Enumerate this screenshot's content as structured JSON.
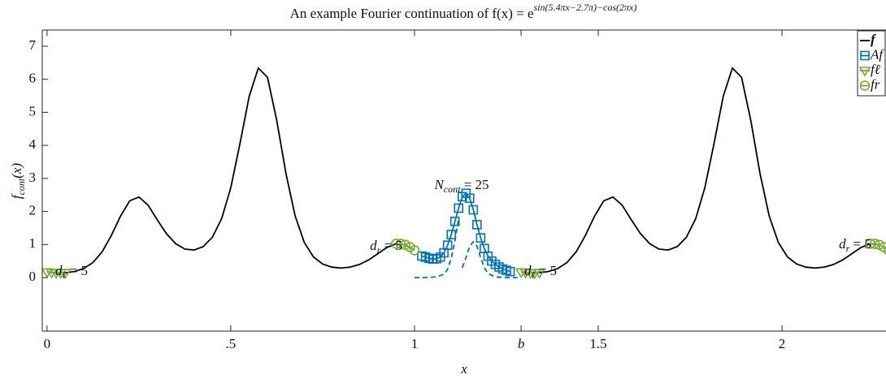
{
  "chart_data": {
    "type": "line",
    "title": {
      "base": "An example Fourier continuation of f(x) = e",
      "sup": "sin(5.4πx−2.7π)−cos(2πx)"
    },
    "xlabel": "x",
    "ylabel": {
      "base": "f",
      "sub": "cont",
      "rest": "(x)"
    },
    "xlim": [
      -0.013,
      2.283
    ],
    "ylim": [
      -1.62,
      7.49
    ],
    "xticks": [
      0,
      {
        "value": 0.5,
        "label": ".5"
      },
      1,
      {
        "value": 1.29,
        "label": "b"
      },
      1.5,
      2
    ],
    "yticks": [
      0,
      1,
      2,
      3,
      4,
      5,
      6,
      7
    ],
    "grid": false,
    "legend": "upper right",
    "series": [
      {
        "name": "f",
        "color": "#000000",
        "marker": "none",
        "dash": false,
        "x": [
          0,
          0.025,
          0.05,
          0.075,
          0.1,
          0.125,
          0.15,
          0.175,
          0.2,
          0.225,
          0.25,
          0.275,
          0.3,
          0.325,
          0.35,
          0.375,
          0.4,
          0.425,
          0.45,
          0.475,
          0.5,
          0.525,
          0.55,
          0.575,
          0.6,
          0.625,
          0.65,
          0.675,
          0.7,
          0.725,
          0.75,
          0.775,
          0.8,
          0.825,
          0.85,
          0.875,
          0.9,
          0.925,
          0.95,
          0.975,
          1,
          1.1,
          1.29,
          1.315,
          1.34,
          1.365,
          1.39,
          1.415,
          1.44,
          1.465,
          1.49,
          1.515,
          1.54,
          1.565,
          1.59,
          1.615,
          1.64,
          1.665,
          1.69,
          1.715,
          1.74,
          1.765,
          1.79,
          1.815,
          1.84,
          1.865,
          1.89,
          1.915,
          1.94,
          1.965,
          1.99,
          2.015,
          2.04,
          2.065,
          2.09,
          2.115,
          2.14,
          2.165,
          2.19,
          2.215,
          2.24,
          2.265
        ],
        "values": [
          0.164,
          0.14,
          0.146,
          0.185,
          0.275,
          0.456,
          0.78,
          1.276,
          1.861,
          2.323,
          2.438,
          2.19,
          1.747,
          1.326,
          1.026,
          0.864,
          0.833,
          0.937,
          1.223,
          1.779,
          2.718,
          4.055,
          5.479,
          6.341,
          6.056,
          4.759,
          3.158,
          1.87,
          1.062,
          0.624,
          0.41,
          0.315,
          0.29,
          0.316,
          0.396,
          0.533,
          0.721,
          0.912,
          1.025,
          0.991,
          0.826,
          null,
          0.164,
          0.14,
          0.146,
          0.185,
          0.275,
          0.456,
          0.78,
          1.276,
          1.861,
          2.323,
          2.438,
          2.19,
          1.747,
          1.326,
          1.026,
          0.864,
          0.833,
          0.937,
          1.223,
          1.779,
          2.718,
          4.055,
          5.479,
          6.341,
          6.056,
          4.759,
          3.158,
          1.87,
          1.062,
          0.624,
          0.41,
          0.315,
          0.29,
          0.316,
          0.396,
          0.533,
          0.721,
          0.912,
          1.025,
          0.991
        ]
      },
      {
        "name": "Af",
        "color": "#0072BD",
        "marker": "square",
        "dash": false,
        "x": [
          1.02,
          1.03,
          1.04,
          1.05,
          1.06,
          1.07,
          1.08,
          1.09,
          1.1,
          1.11,
          1.12,
          1.13,
          1.14,
          1.15,
          1.16,
          1.17,
          1.18,
          1.19,
          1.2,
          1.21,
          1.22,
          1.23,
          1.24,
          1.25,
          1.26
        ],
        "values": [
          0.65,
          0.62,
          0.58,
          0.56,
          0.57,
          0.62,
          0.75,
          0.98,
          1.3,
          1.7,
          2.1,
          2.45,
          2.55,
          2.4,
          2.05,
          1.6,
          1.2,
          0.88,
          0.65,
          0.5,
          0.4,
          0.32,
          0.26,
          0.22,
          0.18
        ]
      },
      {
        "color": "#0072BD",
        "marker": "none",
        "dash": true,
        "x": [
          1,
          1.03,
          1.06,
          1.08,
          1.09,
          1.1,
          1.11,
          1.12
        ],
        "values": [
          0,
          0,
          0.02,
          0.1,
          0.25,
          0.6,
          1.1,
          1.8
        ]
      },
      {
        "color": "#0072BD",
        "marker": "none",
        "dash": true,
        "x": [
          1.13,
          1.14,
          1.15,
          1.16,
          1.17,
          1.18,
          1.19,
          1.2,
          1.22,
          1.25,
          1.28
        ],
        "values": [
          0.3,
          0.6,
          0.95,
          1.08,
          0.95,
          0.6,
          0.3,
          0.12,
          0.02,
          0,
          0
        ]
      },
      {
        "name": "fℓ",
        "color": "#77AC30",
        "marker": "triangle",
        "dash": false,
        "x": [
          0,
          0.0125,
          0.025,
          0.0375,
          0.05,
          0.6,
          1.29,
          1.3025,
          1.315,
          1.3275,
          1.34
        ],
        "values": [
          0.164,
          0.15,
          0.14,
          0.14,
          0.146,
          null,
          0.164,
          0.15,
          0.14,
          0.14,
          0.146
        ]
      },
      {
        "name": "fr",
        "color": "#77AC30",
        "marker": "circle",
        "dash": false,
        "x": [
          0.95,
          0.9625,
          0.975,
          0.9875,
          1,
          1.6,
          2.24,
          2.2525,
          2.265,
          2.2775,
          2.29
        ],
        "values": [
          1.025,
          1.02,
          0.99,
          0.92,
          0.826,
          null,
          1.025,
          1.02,
          0.99,
          0.92,
          0.826
        ]
      }
    ],
    "annotations": [
      {
        "base": "d",
        "sub": "ℓ",
        "rest": " = 5"
      },
      {
        "base": "d",
        "sub": "r",
        "rest": " = 5"
      },
      {
        "base": "N",
        "sub": "cont",
        "rest": " = 25"
      },
      {
        "base": "d",
        "sub": "ℓ",
        "rest": " = 5"
      },
      {
        "base": "d",
        "sub": "r",
        "rest": " = 5"
      }
    ]
  }
}
